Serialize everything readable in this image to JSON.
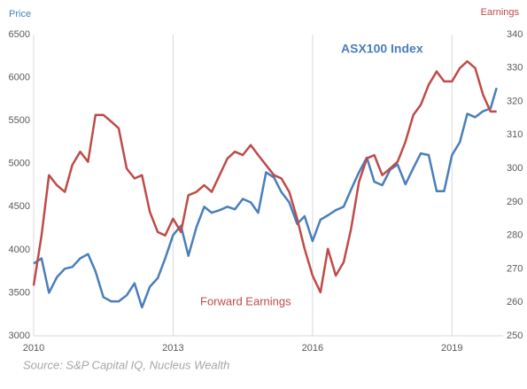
{
  "chart_data": {
    "type": "line",
    "y_label": "Price",
    "y2_label": "Earnings",
    "annotations": [
      "ASX100 Index",
      "Forward Earnings"
    ],
    "source": "Source: S&P Capital IQ, Nucleus Wealth",
    "x": [
      2010,
      2010.17,
      2010.33,
      2010.5,
      2010.67,
      2010.83,
      2011,
      2011.17,
      2011.33,
      2011.5,
      2011.67,
      2011.83,
      2012,
      2012.17,
      2012.33,
      2012.5,
      2012.67,
      2012.83,
      2013,
      2013.17,
      2013.33,
      2013.5,
      2013.67,
      2013.83,
      2014,
      2014.17,
      2014.33,
      2014.5,
      2014.67,
      2014.83,
      2015,
      2015.17,
      2015.33,
      2015.5,
      2015.67,
      2015.83,
      2016,
      2016.17,
      2016.33,
      2016.5,
      2016.67,
      2016.83,
      2017,
      2017.17,
      2017.33,
      2017.5,
      2017.67,
      2017.83,
      2018,
      2018.17,
      2018.33,
      2018.5,
      2018.67,
      2018.83,
      2019,
      2019.17,
      2019.33,
      2019.5,
      2019.67,
      2019.83,
      2019.96
    ],
    "series": [
      {
        "name": "ASX100 Index",
        "color": "#4a7ebb",
        "axis": "y",
        "values": [
          3840,
          3900,
          3500,
          3680,
          3780,
          3800,
          3900,
          3950,
          3750,
          3450,
          3400,
          3400,
          3470,
          3610,
          3330,
          3570,
          3670,
          3900,
          4170,
          4280,
          3930,
          4260,
          4500,
          4430,
          4460,
          4500,
          4470,
          4590,
          4550,
          4430,
          4900,
          4840,
          4670,
          4550,
          4300,
          4390,
          4100,
          4350,
          4400,
          4460,
          4500,
          4700,
          4900,
          5070,
          4790,
          4750,
          4930,
          4990,
          4760,
          4950,
          5120,
          5100,
          4680,
          4680,
          5100,
          5250,
          5580,
          5540,
          5610,
          5640,
          5880
        ]
      },
      {
        "name": "Forward Earnings",
        "color": "#be4b48",
        "axis": "y2",
        "values": [
          265,
          280,
          298,
          295,
          293,
          301,
          305,
          302,
          316,
          316,
          314,
          312,
          300,
          297,
          298,
          287,
          281,
          280,
          285,
          281,
          292,
          293,
          295,
          293,
          298,
          303,
          305,
          304,
          307,
          304,
          301,
          298,
          297,
          293,
          285,
          276,
          268,
          263,
          276,
          268,
          272,
          282,
          296,
          303,
          304,
          298,
          300,
          302,
          308,
          316,
          319,
          325,
          329,
          326,
          326,
          330,
          332,
          330,
          322,
          317,
          317
        ]
      }
    ],
    "xlim": [
      2010,
      2020.1
    ],
    "xticks": [
      2010,
      2013,
      2016,
      2019
    ],
    "ylim": [
      3000,
      6500
    ],
    "yticks": [
      3000,
      3500,
      4000,
      4500,
      5000,
      5500,
      6000,
      6500
    ],
    "y2lim": [
      250,
      340
    ],
    "y2ticks": [
      250,
      260,
      270,
      280,
      290,
      300,
      310,
      320,
      330,
      340
    ],
    "grid": "x"
  }
}
